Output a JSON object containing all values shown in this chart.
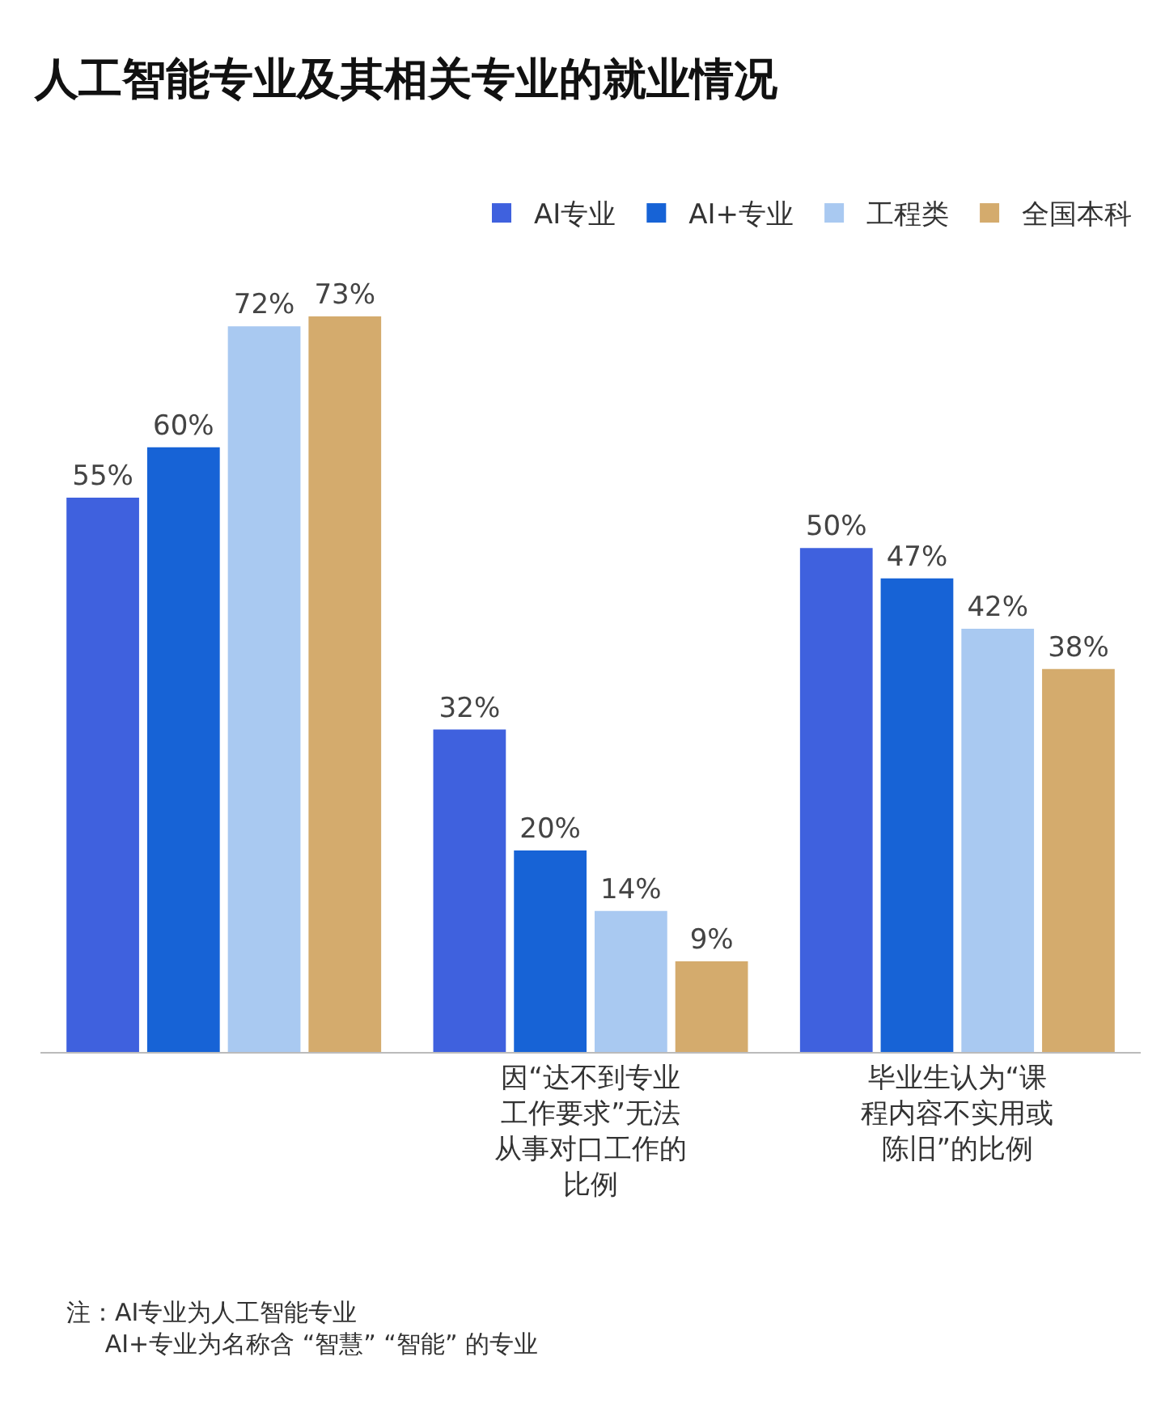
{
  "chart_data": {
    "type": "bar",
    "title": "人工智能专业及其相关专业的就业情况",
    "categories": [
      null,
      "因“达不到专业工作要求”无法从事对口工作的比例",
      "毕业生认为“课程内容不实用或陈旧”的比例"
    ],
    "series": [
      {
        "name": "AI专业",
        "color": "#3f61de",
        "values": [
          55,
          32,
          50
        ],
        "value_labels": [
          "55%",
          "32%",
          "50%"
        ]
      },
      {
        "name": "AI+专业",
        "color": "#1763d6",
        "values": [
          60,
          20,
          47
        ],
        "value_labels": [
          "60%",
          "20%",
          "47%"
        ]
      },
      {
        "name": "工程类",
        "color": "#a9c9f1",
        "values": [
          72,
          14,
          42
        ],
        "value_labels": [
          "72%",
          "14%",
          "42%"
        ]
      },
      {
        "name": "全国本科",
        "color": "#d4ab6d",
        "values": [
          73,
          9,
          38
        ],
        "value_labels": [
          "73%",
          "9%",
          "38%"
        ]
      }
    ],
    "legend": "top right",
    "grid": false,
    "annotations": [
      "注：AI专业为人工智能专业\n     AI+专业为名称含 “智慧” “智能” 的专业"
    ]
  }
}
